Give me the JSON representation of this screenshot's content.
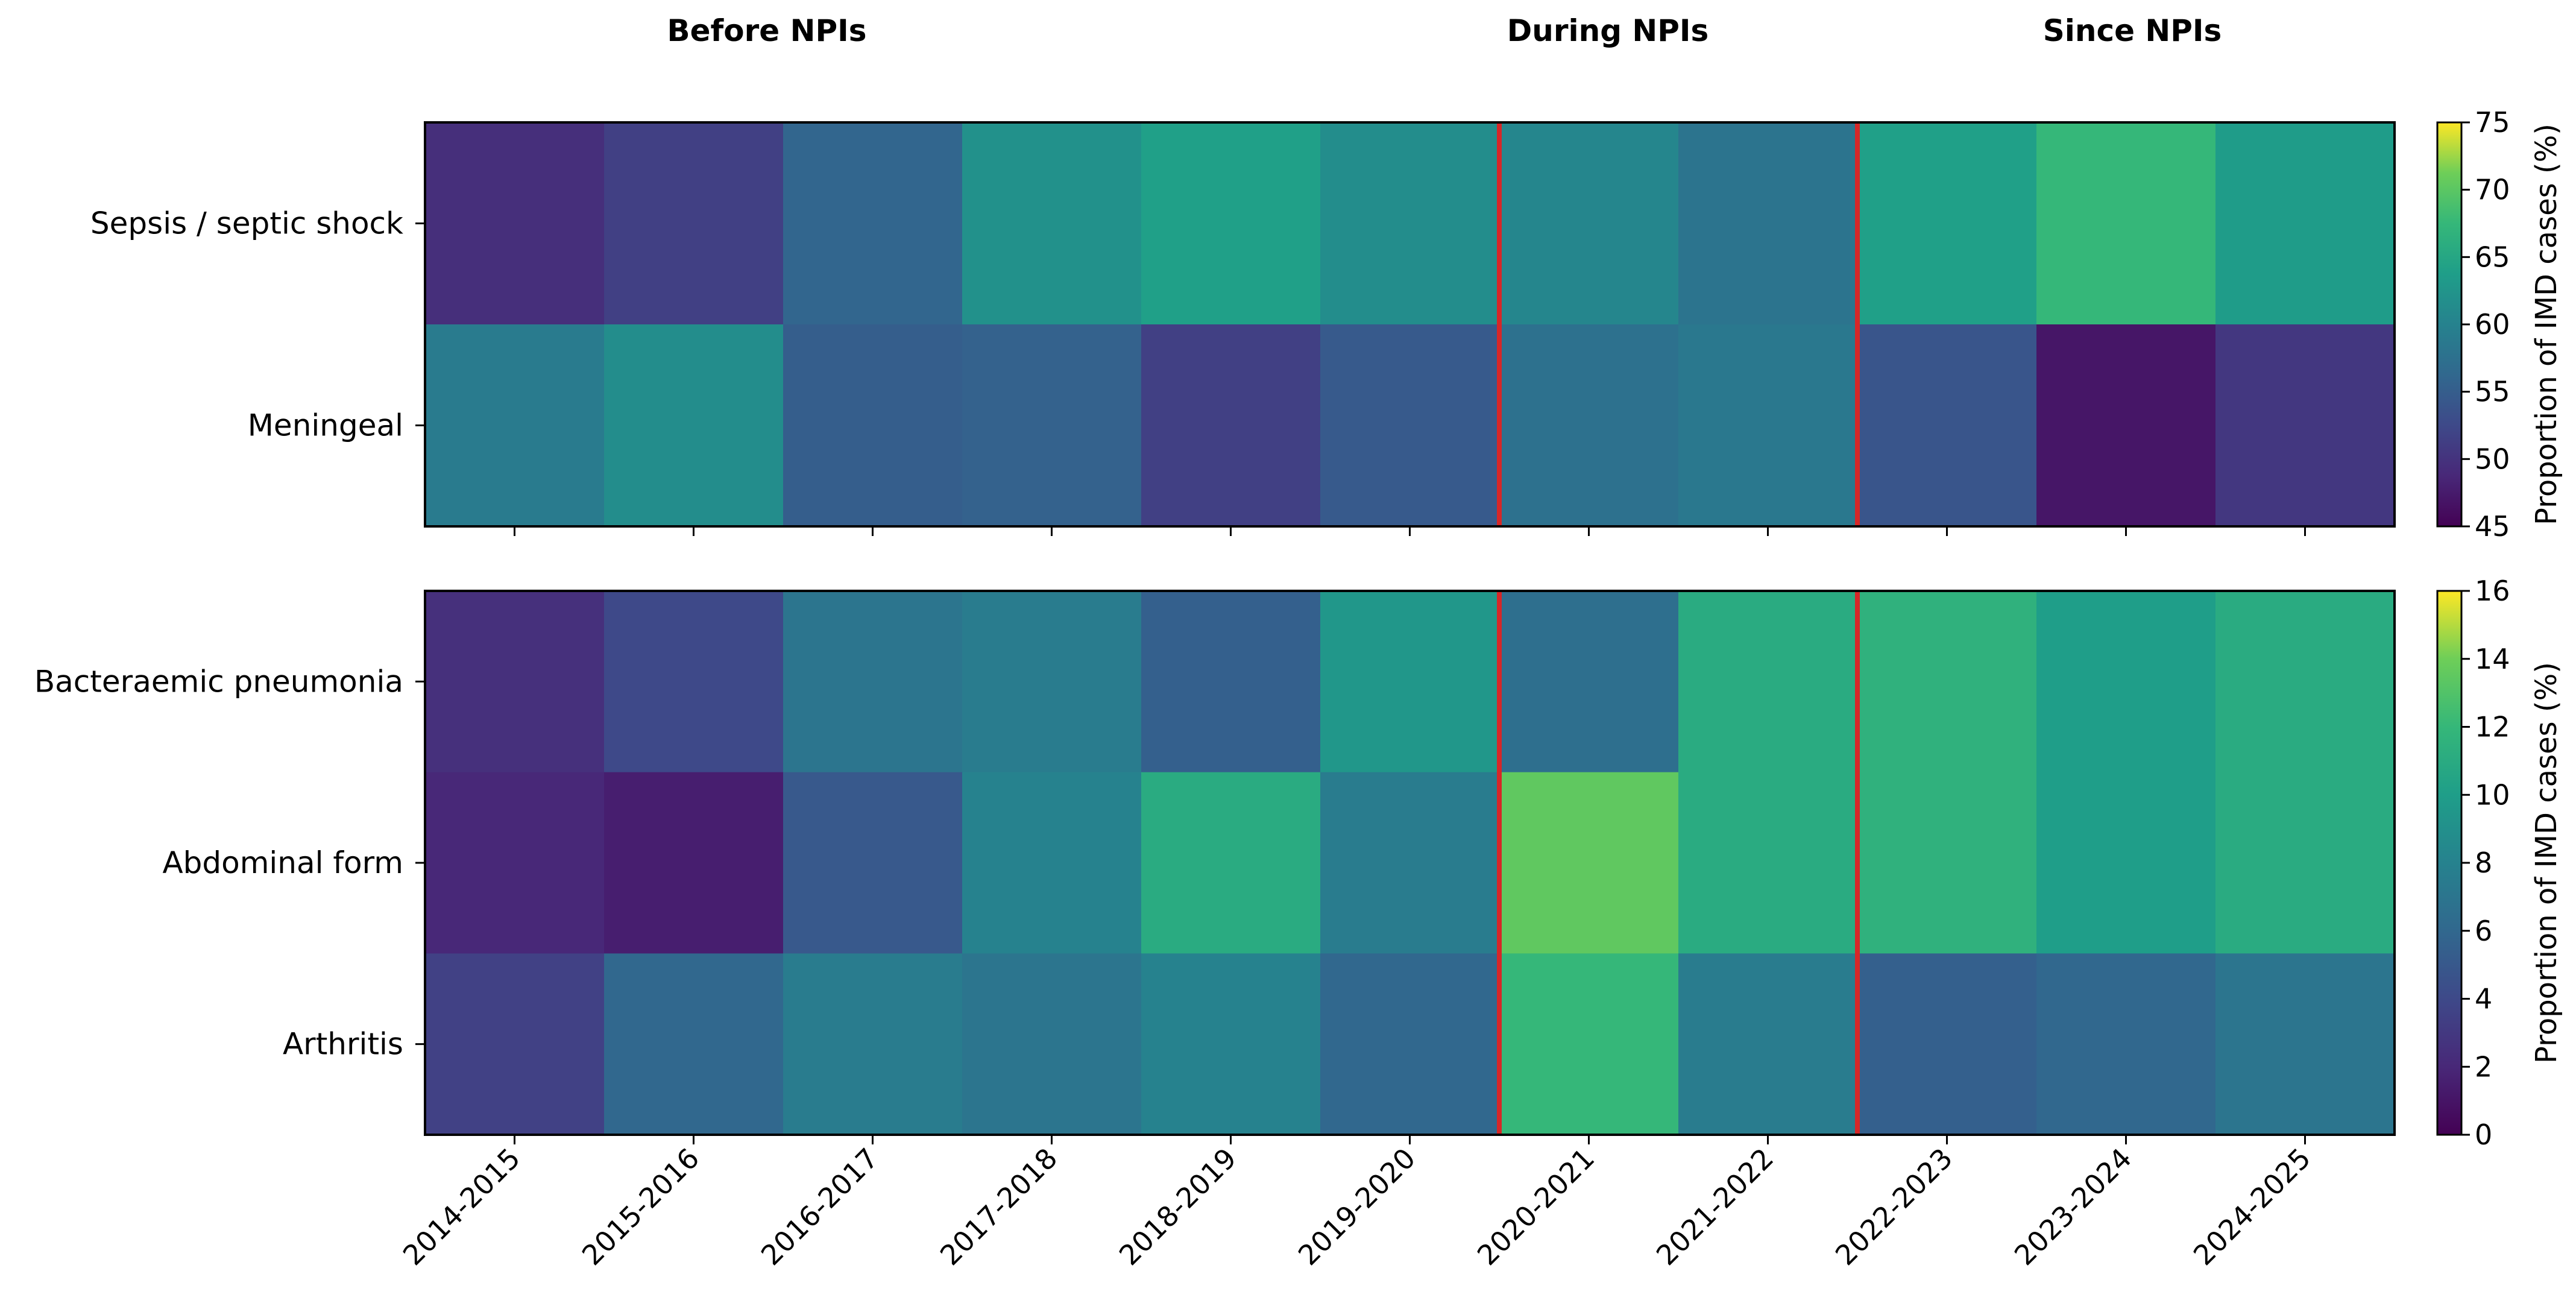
{
  "chart_data": {
    "type": "heatmap",
    "categories": [
      "2014-2015",
      "2015-2016",
      "2016-2017",
      "2017-2018",
      "2018-2019",
      "2019-2020",
      "2020-2021",
      "2021-2022",
      "2022-2023",
      "2023-2024",
      "2024-2025"
    ],
    "periods": [
      {
        "label": "Before NPIs",
        "from": 0,
        "to": 5
      },
      {
        "label": "During NPIs",
        "from": 6,
        "to": 7
      },
      {
        "label": "Since NPIs",
        "from": 8,
        "to": 10
      }
    ],
    "dividers_after_index": [
      5,
      7
    ],
    "divider_color": "#d62728",
    "colormap": "viridis",
    "panels": [
      {
        "rows": [
          "Sepsis / septic shock",
          "Meningeal"
        ],
        "values": [
          [
            49.5,
            51.5,
            56.0,
            62.0,
            64.0,
            61.5,
            60.5,
            58.0,
            64.0,
            67.5,
            63.5
          ],
          [
            59.0,
            61.5,
            55.0,
            55.5,
            51.5,
            54.5,
            57.5,
            58.5,
            54.0,
            47.0,
            50.5
          ]
        ],
        "colorbar": {
          "range": [
            45,
            75
          ],
          "ticks": [
            "45",
            "50",
            "55",
            "60",
            "65",
            "70",
            "75"
          ],
          "label": "Proportion of IMD cases (%)"
        }
      },
      {
        "rows": [
          "Bacteraemic pneumonia",
          "Abdominal form",
          "Arthritis"
        ],
        "values": [
          [
            2.5,
            4.0,
            7.0,
            7.5,
            5.5,
            9.5,
            6.5,
            11.0,
            11.5,
            10.0,
            11.0
          ],
          [
            2.0,
            1.5,
            5.0,
            8.0,
            11.0,
            7.5,
            13.5,
            11.0,
            11.5,
            10.0,
            11.0
          ],
          [
            3.5,
            6.0,
            7.5,
            7.0,
            8.0,
            6.0,
            12.0,
            7.5,
            5.5,
            6.0,
            7.0
          ]
        ],
        "colorbar": {
          "range": [
            0,
            16
          ],
          "ticks": [
            "0",
            "2",
            "4",
            "6",
            "8",
            "10",
            "12",
            "14",
            "16"
          ],
          "label": "Proportion of IMD cases (%)"
        }
      }
    ]
  }
}
